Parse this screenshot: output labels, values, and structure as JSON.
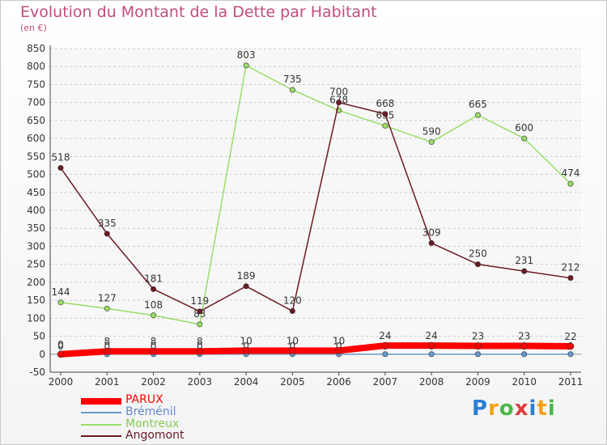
{
  "chart_data": {
    "type": "line",
    "title": "Evolution du Montant de la Dette par Habitant",
    "subtitle": "(en €)",
    "x": [
      "2000",
      "2001",
      "2002",
      "2003",
      "2004",
      "2005",
      "2006",
      "2007",
      "2008",
      "2009",
      "2010",
      "2011"
    ],
    "ylim": [
      -50,
      850
    ],
    "yticks": [
      -50,
      0,
      50,
      100,
      150,
      200,
      250,
      300,
      350,
      400,
      450,
      500,
      550,
      600,
      650,
      700,
      750,
      800,
      850
    ],
    "grid": true,
    "legend_position": "bottom-left",
    "series": [
      {
        "name": "PARUX",
        "color": "#ff0000",
        "values": [
          0,
          8,
          8,
          8,
          10,
          10,
          10,
          24,
          24,
          23,
          23,
          22
        ],
        "labels": [
          "0",
          "8",
          "8",
          "8",
          "10",
          "10",
          "10",
          "24",
          "24",
          "23",
          "23",
          "22"
        ]
      },
      {
        "name": "Bréménil",
        "color": "#6699cc",
        "values": [
          0,
          0,
          0,
          0,
          0,
          0,
          0,
          0,
          0,
          0,
          0,
          0
        ],
        "labels": [
          "0",
          "0",
          "0",
          "0",
          "0",
          "0",
          "0",
          "0",
          "0",
          "0",
          "0",
          "0"
        ]
      },
      {
        "name": "Montreux",
        "color": "#99dd66",
        "values": [
          144,
          127,
          108,
          83,
          803,
          735,
          678,
          635,
          590,
          665,
          600,
          474
        ],
        "labels": [
          "144",
          "127",
          "108",
          "83",
          "803",
          "735",
          "678",
          "635",
          "590",
          "665",
          "600",
          "474"
        ]
      },
      {
        "name": "Angomont",
        "color": "#6b1a22",
        "values": [
          518,
          335,
          181,
          119,
          189,
          120,
          700,
          668,
          309,
          250,
          231,
          212
        ],
        "labels": [
          "518",
          "335",
          "181",
          "119",
          "189",
          "120",
          "700",
          "668",
          "309",
          "250",
          "231",
          "212"
        ]
      }
    ]
  },
  "legend": {
    "items": [
      {
        "label": "PARUX",
        "color": "#ff0000"
      },
      {
        "label": "Bréménil",
        "color": "#6699cc"
      },
      {
        "label": "Montreux",
        "color": "#88cc55"
      },
      {
        "label": "Angomont",
        "color": "#6b1a22"
      }
    ]
  },
  "logo": {
    "letters": [
      "P",
      "r",
      "o",
      "x",
      "i",
      "t",
      "i"
    ],
    "colors": [
      "#2a7fd4",
      "#f2a21b",
      "#49b847",
      "#e03b3b",
      "#2a7fd4",
      "#f2a21b",
      "#49b847"
    ]
  }
}
